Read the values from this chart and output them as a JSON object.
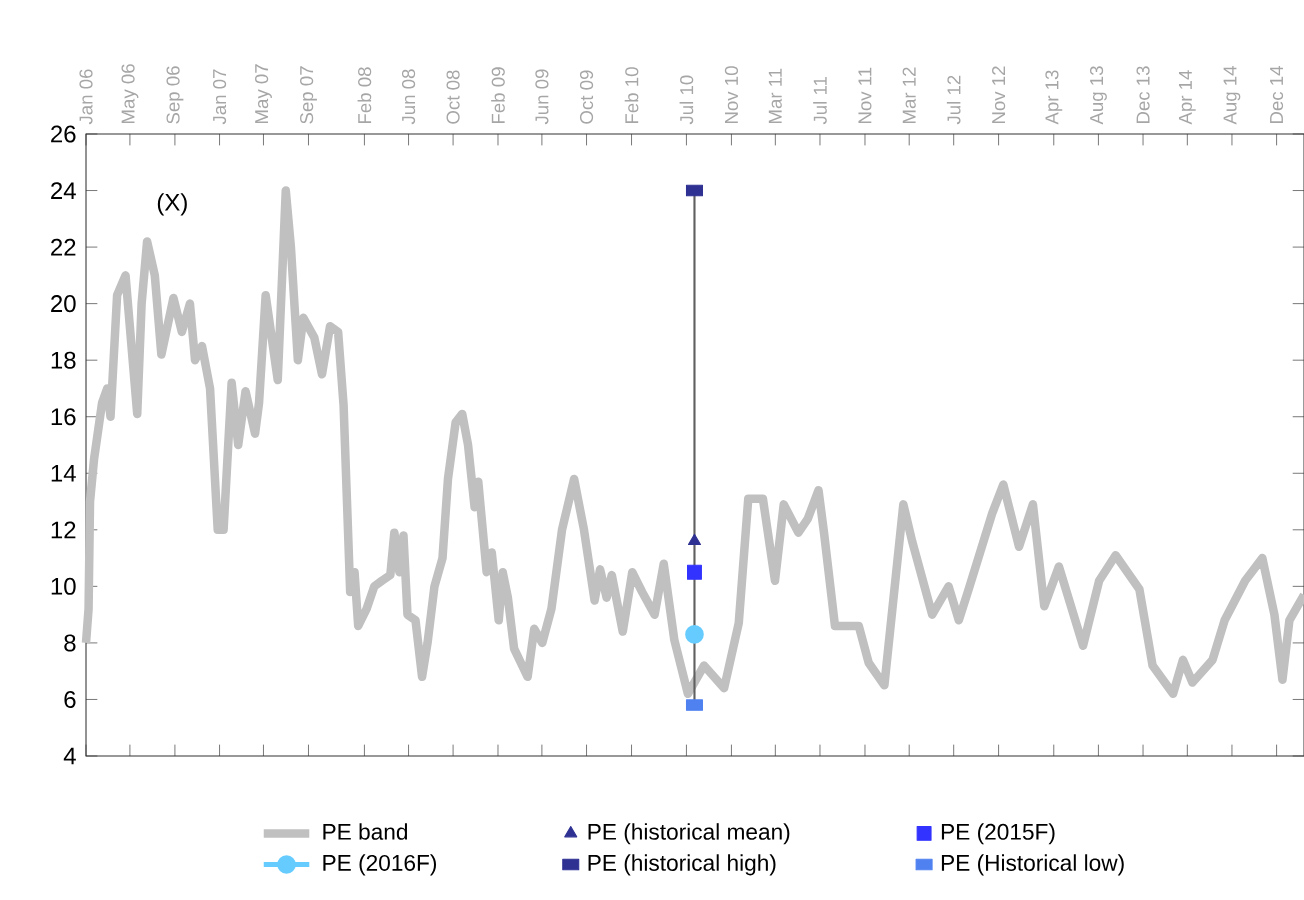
{
  "chart_data": {
    "type": "line",
    "annotations": [
      "(X)"
    ],
    "xlim": [
      "2006-01-01",
      "2015-02-14"
    ],
    "ylim": [
      4,
      26
    ],
    "yticks": [
      4,
      6,
      8,
      10,
      12,
      14,
      16,
      18,
      20,
      22,
      24,
      26
    ],
    "xticks": [
      {
        "value": "2006-01",
        "label": "Jan 06"
      },
      {
        "value": "2006-05",
        "label": "May 06"
      },
      {
        "value": "2006-09",
        "label": "Sep 06"
      },
      {
        "value": "2007-01",
        "label": "Jan 07"
      },
      {
        "value": "2007-05",
        "label": "May 07"
      },
      {
        "value": "2007-09",
        "label": "Sep 07"
      },
      {
        "value": "2008-02",
        "label": "Feb 08"
      },
      {
        "value": "2008-06",
        "label": "Jun 08"
      },
      {
        "value": "2008-10",
        "label": "Oct 08"
      },
      {
        "value": "2009-02",
        "label": "Feb 09"
      },
      {
        "value": "2009-06",
        "label": "Jun 09"
      },
      {
        "value": "2009-10",
        "label": "Oct 09"
      },
      {
        "value": "2010-02",
        "label": "Feb 10"
      },
      {
        "value": "2010-07",
        "label": "Jul 10"
      },
      {
        "value": "2010-11",
        "label": "Nov 10"
      },
      {
        "value": "2011-03",
        "label": "Mar 11"
      },
      {
        "value": "2011-07",
        "label": "Jul 11"
      },
      {
        "value": "2011-11",
        "label": "Nov 11"
      },
      {
        "value": "2012-03",
        "label": "Mar 12"
      },
      {
        "value": "2012-07",
        "label": "Jul 12"
      },
      {
        "value": "2012-11",
        "label": "Nov 12"
      },
      {
        "value": "2013-04",
        "label": "Apr 13"
      },
      {
        "value": "2013-08",
        "label": "Aug 13"
      },
      {
        "value": "2013-12",
        "label": "Dec 13"
      },
      {
        "value": "2014-04",
        "label": "Apr 14"
      },
      {
        "value": "2014-08",
        "label": "Aug 14"
      },
      {
        "value": "2014-12",
        "label": "Dec 14"
      }
    ],
    "grid": false,
    "legend": "bottom",
    "line_style": "solid",
    "series": [
      {
        "name": "PE band",
        "marker": "none",
        "color": "#c0c0c0",
        "x": [
          "2006-01-01",
          "2006-01-08",
          "2006-01-12",
          "2006-01-23",
          "2006-02-14",
          "2006-02-28",
          "2006-03-09",
          "2006-03-27",
          "2006-04-19",
          "2006-05-21",
          "2006-06-02",
          "2006-06-17",
          "2006-07-08",
          "2006-07-26",
          "2006-08-28",
          "2006-09-20",
          "2006-10-12",
          "2006-10-26",
          "2006-11-14",
          "2006-12-06",
          "2006-12-27",
          "2007-01-12",
          "2007-02-03",
          "2007-02-21",
          "2007-03-13",
          "2007-04-08",
          "2007-04-19",
          "2007-05-07",
          "2007-06-09",
          "2007-07-01",
          "2007-07-15",
          "2007-08-03",
          "2007-08-18",
          "2007-09-17",
          "2007-10-08",
          "2007-10-30",
          "2007-11-21",
          "2007-12-06",
          "2007-12-24",
          "2008-01-05",
          "2008-01-15",
          "2008-02-07",
          "2008-02-28",
          "2008-03-20",
          "2008-04-12",
          "2008-04-23",
          "2008-05-07",
          "2008-05-18",
          "2008-05-29",
          "2008-06-20",
          "2008-07-08",
          "2008-07-23",
          "2008-08-11",
          "2008-09-02",
          "2008-09-17",
          "2008-10-08",
          "2008-10-26",
          "2008-11-11",
          "2008-11-29",
          "2008-12-09",
          "2009-01-01",
          "2009-01-15",
          "2009-02-03",
          "2009-02-14",
          "2009-02-28",
          "2009-03-17",
          "2009-04-08",
          "2009-04-23",
          "2009-05-11",
          "2009-06-02",
          "2009-06-27",
          "2009-07-26",
          "2009-08-28",
          "2009-09-24",
          "2009-10-23",
          "2009-11-07",
          "2009-11-25",
          "2009-12-09",
          "2010-01-08",
          "2010-02-03",
          "2010-03-02",
          "2010-04-05",
          "2010-04-30",
          "2010-05-29",
          "2010-07-05",
          "2010-08-18",
          "2010-10-12",
          "2010-11-21",
          "2010-12-17",
          "2011-01-26",
          "2011-02-28",
          "2011-03-24",
          "2011-05-03",
          "2011-05-29",
          "2011-06-27",
          "2011-07-12",
          "2011-08-11",
          "2011-10-15",
          "2011-11-11",
          "2011-12-24",
          "2012-02-14",
          "2012-03-09",
          "2012-05-03",
          "2012-06-17",
          "2012-07-15",
          "2012-08-11",
          "2012-10-15",
          "2012-11-14",
          "2012-12-27",
          "2013-02-03",
          "2013-03-06",
          "2013-04-15",
          "2013-06-20",
          "2013-08-03",
          "2013-09-17",
          "2013-11-21",
          "2013-12-27",
          "2014-02-21",
          "2014-03-20",
          "2014-04-15",
          "2014-06-09",
          "2014-07-12",
          "2014-09-06",
          "2014-10-23",
          "2014-11-25",
          "2014-12-17",
          "2015-01-05",
          "2015-02-14"
        ],
        "values": [
          8.0,
          9.2,
          13,
          14.5,
          16.5,
          17,
          16,
          20.3,
          21,
          16.1,
          20,
          22.2,
          21,
          18.2,
          20.2,
          19,
          20,
          18,
          18.5,
          17,
          12,
          12,
          17.2,
          15,
          16.9,
          15.4,
          16.5,
          20.3,
          17.3,
          24,
          22,
          18,
          19.5,
          18.8,
          17.5,
          19.2,
          19,
          16.4,
          9.8,
          10.5,
          8.6,
          9.2,
          10,
          10.2,
          10.4,
          11.9,
          10.5,
          11.8,
          9,
          8.8,
          6.8,
          8,
          10,
          11,
          13.8,
          15.8,
          16.1,
          15,
          12.8,
          13.7,
          10.5,
          11.2,
          8.8,
          10.5,
          9.6,
          7.8,
          7.2,
          6.8,
          8.5,
          8,
          9.2,
          12,
          13.8,
          12,
          9.5,
          10.6,
          9.6,
          10.4,
          8.4,
          10.5,
          9.8,
          9,
          10.8,
          8.1,
          6.2,
          7.2,
          6.4,
          8.7,
          13.1,
          13.1,
          10.2,
          12.9,
          11.9,
          12.4,
          13.4,
          11.9,
          8.6,
          8.6,
          7.3,
          6.5,
          12.9,
          11.6,
          9.0,
          10.0,
          8.8,
          9.9,
          12.6,
          13.6,
          11.4,
          12.9,
          9.3,
          10.7,
          7.9,
          10.2,
          11.1,
          9.9,
          7.2,
          6.2,
          7.4,
          6.6,
          7.4,
          8.8,
          10.2,
          11.0,
          9.0,
          6.7,
          8.8,
          9.7
        ]
      },
      {
        "type": "line",
        "marker": "none",
        "color": "#606060",
        "x": [
          "2010-07-23",
          "2010-07-23"
        ],
        "values": [
          5.8,
          24
        ]
      },
      {
        "name": "PE (historical mean)",
        "type": "scatter",
        "marker": "triangle",
        "color": "#2e3192",
        "x": [
          "2010-07-23"
        ],
        "values": [
          11.6
        ]
      },
      {
        "name": "PE (2015F)",
        "type": "scatter",
        "marker": "square",
        "color": "#3333ff",
        "x": [
          "2010-07-23"
        ],
        "values": [
          10.5
        ]
      },
      {
        "name": "PE (2016F)",
        "type": "line",
        "marker": "circle",
        "color": "#66ccff",
        "x": [
          "2010-07-23"
        ],
        "values": [
          8.3
        ]
      },
      {
        "name": "PE (historical high)",
        "type": "scatter",
        "marker": "square",
        "color": "#2e3192",
        "x": [
          "2010-07-23"
        ],
        "values": [
          24
        ]
      },
      {
        "name": "PE (Historical low)",
        "type": "scatter",
        "marker": "square",
        "color": "#4f81f0",
        "x": [
          "2010-07-23"
        ],
        "values": [
          5.8
        ]
      }
    ]
  }
}
